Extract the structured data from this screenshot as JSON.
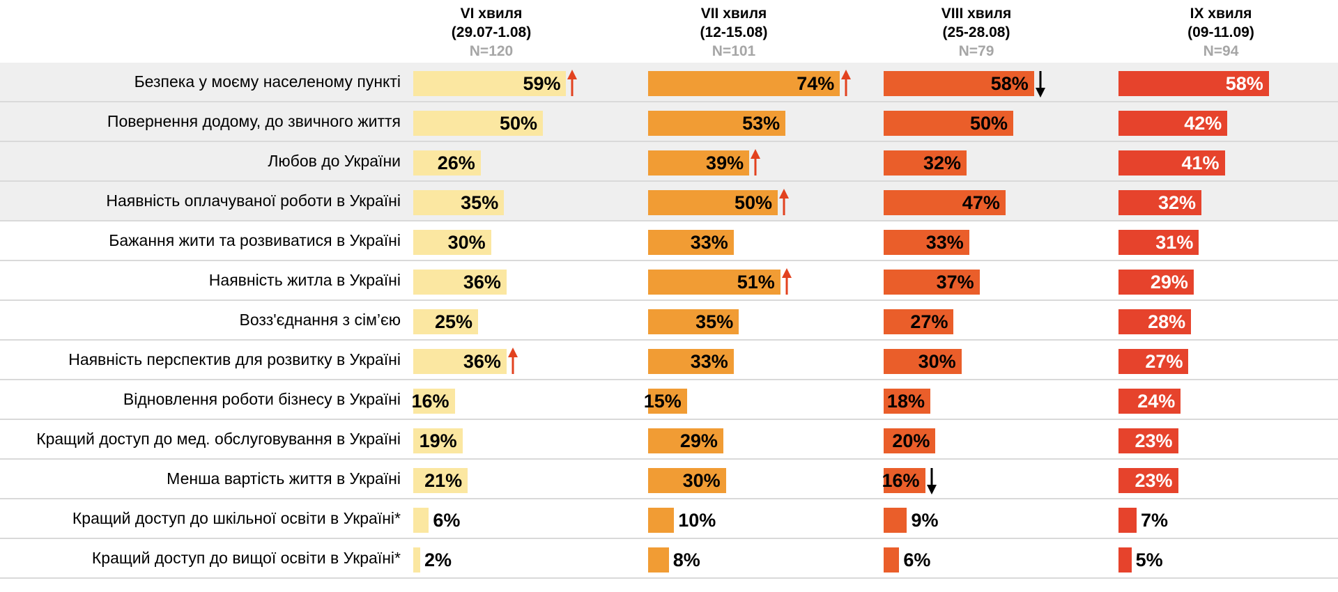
{
  "chart_data": {
    "type": "bar",
    "orientation": "horizontal",
    "layout": "small-multiples by wave",
    "colors": [
      "#fbe7a1",
      "#f19c34",
      "#ea5e2a",
      "#e6432c"
    ],
    "trend_colors": {
      "up": "#e2421f",
      "down": "#000000"
    },
    "waves": [
      {
        "title": "VI хвиля",
        "dates": "(29.07-1.08)",
        "n": "N=120"
      },
      {
        "title": "VII хвиля",
        "dates": "(12-15.08)",
        "n": "N=101"
      },
      {
        "title": "VIII хвиля",
        "dates": "(25-28.08)",
        "n": "N=79"
      },
      {
        "title": "IX хвиля",
        "dates": "(09-11.09)",
        "n": "N=94"
      }
    ],
    "categories": [
      "Безпека у моєму населеному пункті",
      "Повернення додому, до звичного життя",
      "Любов до України",
      "Наявність оплачуваної роботи в Україні",
      "Бажання жити та розвиватися в Україні",
      "Наявність житла в Україні",
      "Возз'єднання з сім’єю",
      "Наявність перспектив для розвитку в Україні",
      "Відновлення роботи бізнесу в Україні",
      "Кращий доступ до мед. обслуговування в Україні",
      "Менша вартість життя в Україні",
      "Кращий доступ до шкільної освіти в Україні*",
      "Кращий доступ до вищої освіти в Україні*"
    ],
    "series": [
      {
        "values": [
          59,
          50,
          26,
          35,
          30,
          36,
          25,
          36,
          16,
          19,
          21,
          6,
          2
        ],
        "labels": [
          "59%",
          "50%",
          "26%",
          "35%",
          "30%",
          "36%",
          "25%",
          "36%",
          "16%",
          "19%",
          "21%",
          "6%",
          "2%"
        ],
        "arrows": [
          "up",
          "",
          "",
          "",
          "",
          "",
          "",
          "up",
          "",
          "",
          "",
          "",
          ""
        ]
      },
      {
        "values": [
          74,
          53,
          39,
          50,
          33,
          51,
          35,
          33,
          15,
          29,
          30,
          10,
          8
        ],
        "labels": [
          "74%",
          "53%",
          "39%",
          "50%",
          "33%",
          "51%",
          "35%",
          "33%",
          "15%",
          "29%",
          "30%",
          "10%",
          "8%"
        ],
        "arrows": [
          "up",
          "",
          "up",
          "up",
          "",
          "up",
          "",
          "",
          "",
          "",
          "",
          "",
          ""
        ]
      },
      {
        "values": [
          58,
          50,
          32,
          47,
          33,
          37,
          27,
          30,
          18,
          20,
          16,
          9,
          6
        ],
        "labels": [
          "58%",
          "50%",
          "32%",
          "47%",
          "33%",
          "37%",
          "27%",
          "30%",
          "18%",
          "20%",
          "16%",
          "9%",
          "6%"
        ],
        "arrows": [
          "down",
          "",
          "",
          "",
          "",
          "",
          "",
          "",
          "",
          "",
          "down",
          "",
          ""
        ]
      },
      {
        "values": [
          58,
          42,
          41,
          32,
          31,
          29,
          28,
          27,
          24,
          23,
          23,
          7,
          5
        ],
        "labels": [
          "58%",
          "42%",
          "41%",
          "32%",
          "31%",
          "29%",
          "28%",
          "27%",
          "24%",
          "23%",
          "23%",
          "7%",
          "5%"
        ],
        "arrows": [
          "",
          "",
          "",
          "",
          "",
          "",
          "",
          "",
          "",
          "",
          "",
          "",
          ""
        ]
      }
    ],
    "highlighted_rows": [
      0,
      1,
      2,
      3
    ]
  }
}
